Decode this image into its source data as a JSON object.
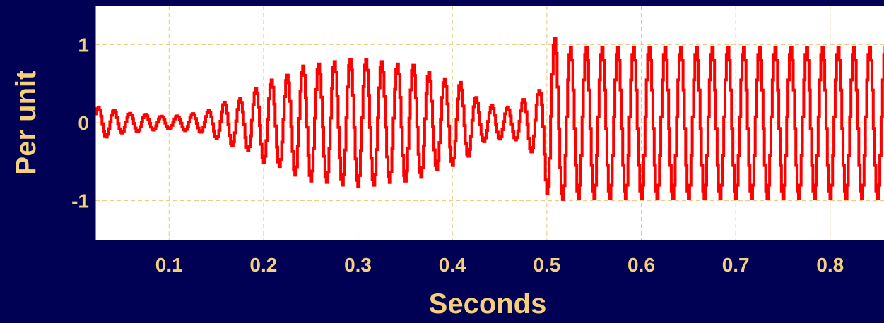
{
  "colors": {
    "background": "#000055",
    "plot_background": "#ffffff",
    "series": "#ff0000",
    "text": "#f5d07a",
    "grid": "#e8c87a"
  },
  "chart_data": {
    "type": "line",
    "title": "",
    "xlabel": "Seconds",
    "ylabel": "Per unit",
    "xlim": [
      0.022,
      0.86
    ],
    "ylim": [
      -1.5,
      1.5
    ],
    "xticks": [
      0.1,
      0.2,
      0.3,
      0.4,
      0.5,
      0.6,
      0.7,
      0.8
    ],
    "xtick_labels": [
      "0.1",
      "0.2",
      "0.3",
      "0.4",
      "0.5",
      "0.6",
      "0.7",
      "0.8"
    ],
    "yticks": [
      -1,
      0,
      1
    ],
    "ytick_labels": [
      "-1",
      "0",
      "1"
    ],
    "grid": true,
    "legend": false,
    "series": [
      {
        "frequency_hz": 60,
        "waveform": "stepped sine",
        "envelope_points": [
          {
            "t": 0.022,
            "amplitude": 0.2
          },
          {
            "t": 0.06,
            "amplitude": 0.12
          },
          {
            "t": 0.1,
            "amplitude": 0.08
          },
          {
            "t": 0.13,
            "amplitude": 0.12
          },
          {
            "t": 0.17,
            "amplitude": 0.3
          },
          {
            "t": 0.21,
            "amplitude": 0.55
          },
          {
            "t": 0.25,
            "amplitude": 0.75
          },
          {
            "t": 0.3,
            "amplitude": 0.82
          },
          {
            "t": 0.35,
            "amplitude": 0.75
          },
          {
            "t": 0.4,
            "amplitude": 0.55
          },
          {
            "t": 0.44,
            "amplitude": 0.22
          },
          {
            "t": 0.46,
            "amplitude": 0.2
          },
          {
            "t": 0.49,
            "amplitude": 0.4
          },
          {
            "t": 0.505,
            "amplitude": 1.1
          },
          {
            "t": 0.52,
            "amplitude": 0.97
          },
          {
            "t": 0.86,
            "amplitude": 0.97
          }
        ]
      }
    ]
  }
}
